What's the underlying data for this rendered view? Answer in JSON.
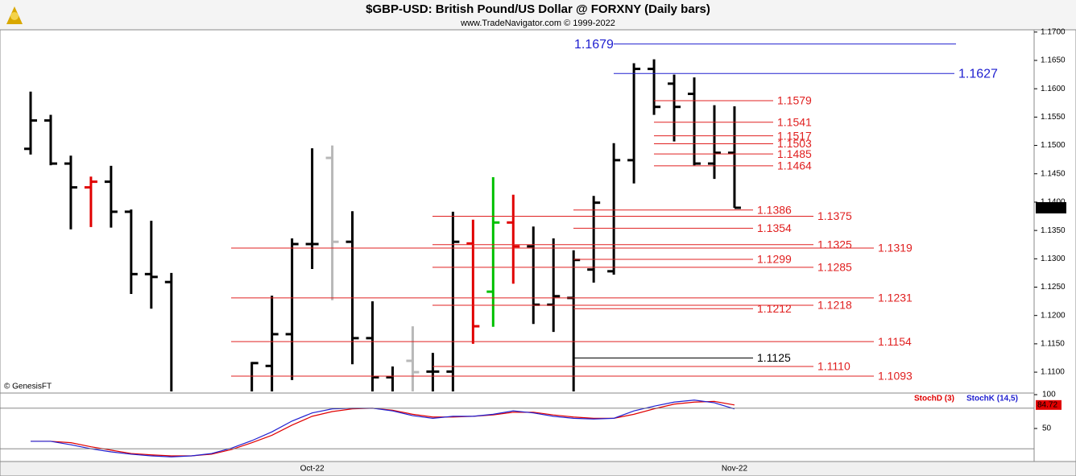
{
  "chart_data": {
    "type": "ohlc",
    "title": "$GBP-USD:  British Pound/US Dollar @ FORXNY  (Daily bars)",
    "subtitle": "www.TradeNavigator.com © 1999-2022",
    "watermark": "© GenesisFT",
    "categories": [
      null,
      null,
      null,
      null,
      null,
      null,
      null,
      null,
      null,
      null,
      null,
      null,
      null,
      null,
      "Oct-22",
      null,
      null,
      null,
      null,
      null,
      null,
      null,
      null,
      null,
      null,
      null,
      null,
      null,
      null,
      null,
      null,
      null,
      null,
      null,
      null,
      "Nov-22"
    ],
    "open": [
      1.1494,
      1.1544,
      1.1468,
      1.1426,
      1.1436,
      1.1383,
      1.1273,
      1.1259,
      null,
      null,
      null,
      1.105,
      1.1111,
      1.1167,
      1.1326,
      1.1478,
      1.133,
      1.116,
      1.1091,
      1.112,
      1.1101,
      1.1101,
      1.1327,
      1.1242,
      1.1364,
      1.1322,
      1.1219,
      1.1231,
      1.1281,
      1.1278,
      1.1474,
      1.1635,
      1.1609,
      1.1591,
      1.1468,
      1.1487
    ],
    "high": [
      1.1595,
      1.1554,
      1.1482,
      1.1445,
      1.1464,
      1.1387,
      1.1367,
      1.1275,
      null,
      null,
      null,
      1.1118,
      1.1235,
      1.1336,
      1.1495,
      1.15,
      1.1384,
      1.1225,
      1.111,
      1.1181,
      1.1134,
      1.1383,
      1.1369,
      1.1444,
      1.1413,
      1.1357,
      1.1336,
      1.1315,
      1.1411,
      1.1504,
      1.1645,
      1.1652,
      1.1625,
      1.162,
      1.1571,
      1.1569
    ],
    "low": [
      1.1484,
      1.1465,
      1.1352,
      1.1356,
      1.1355,
      1.1238,
      1.1212,
      1.104,
      null,
      null,
      null,
      1.103,
      1.106,
      1.1086,
      1.1282,
      1.1227,
      1.1114,
      1.106,
      1.106,
      1.106,
      1.106,
      1.106,
      1.115,
      1.118,
      1.1256,
      1.1185,
      1.1171,
      1.106,
      1.1258,
      1.1272,
      1.1433,
      1.1554,
      1.1507,
      1.1465,
      1.1441,
      1.139
    ],
    "close": [
      1.1544,
      1.1468,
      1.1426,
      1.1436,
      1.1383,
      1.1273,
      1.1268,
      1.105,
      null,
      null,
      null,
      1.1116,
      1.1167,
      1.1326,
      1.1326,
      1.133,
      1.116,
      1.1091,
      1.106,
      1.11,
      1.1101,
      1.133,
      1.1181,
      1.1364,
      1.1322,
      1.1219,
      1.1234,
      1.1298,
      1.1399,
      1.1474,
      1.1635,
      1.1568,
      1.1568,
      1.1468,
      1.1487,
      1.139
    ],
    "bar_colors": [
      "#000",
      "#000",
      "#000",
      "#e00000",
      "#000",
      "#000",
      "#000",
      "#000",
      null,
      null,
      null,
      "#000",
      "#000",
      "#000",
      "#000",
      "#b8b8b8",
      "#000",
      "#000",
      "#000",
      "#b8b8b8",
      "#000",
      "#000",
      "#e00000",
      "#00c000",
      "#e00000",
      "#000",
      "#000",
      "#000",
      "#000",
      "#000",
      "#000",
      "#000",
      "#000",
      "#000",
      "#000",
      "#000"
    ],
    "ylim": [
      1.1066,
      1.1704
    ],
    "yticks": [
      {
        "value": 1.17,
        "label": "1.1700"
      },
      {
        "value": 1.165,
        "label": "1.1650"
      },
      {
        "value": 1.16,
        "label": "1.1600"
      },
      {
        "value": 1.155,
        "label": "1.1550"
      },
      {
        "value": 1.15,
        "label": "1.1500"
      },
      {
        "value": 1.145,
        "label": "1.1450"
      },
      {
        "value": 1.14,
        "label": "1.1400"
      },
      {
        "value": 1.135,
        "label": "1.1350"
      },
      {
        "value": 1.13,
        "label": "1.1300"
      },
      {
        "value": 1.125,
        "label": "1.1250"
      },
      {
        "value": 1.12,
        "label": "1.1200"
      },
      {
        "value": 1.115,
        "label": "1.1150"
      },
      {
        "value": 1.11,
        "label": "1.1100"
      }
    ],
    "last_price": {
      "value": 1.139,
      "label": "1.1390"
    },
    "levels": [
      {
        "value": 1.1679,
        "label": "1.1679",
        "color": "#2020d0"
      },
      {
        "value": 1.1627,
        "label": "1.1627",
        "color": "#2020d0"
      },
      {
        "value": 1.1579,
        "label": "1.1579",
        "color": "#e02020"
      },
      {
        "value": 1.1541,
        "label": "1.1541",
        "color": "#e02020"
      },
      {
        "value": 1.1517,
        "label": "1.1517",
        "color": "#e02020"
      },
      {
        "value": 1.1503,
        "label": "1.1503",
        "color": "#e02020"
      },
      {
        "value": 1.1485,
        "label": "1.1485",
        "color": "#e02020"
      },
      {
        "value": 1.1464,
        "label": "1.1464",
        "color": "#e02020"
      },
      {
        "value": 1.1386,
        "label": "1.1386",
        "color": "#e02020"
      },
      {
        "value": 1.1375,
        "label": "1.1375",
        "color": "#e02020"
      },
      {
        "value": 1.1354,
        "label": "1.1354",
        "color": "#e02020"
      },
      {
        "value": 1.1325,
        "label": "1.1325",
        "color": "#e02020"
      },
      {
        "value": 1.1319,
        "label": "1.1319",
        "color": "#e02020"
      },
      {
        "value": 1.1299,
        "label": "1.1299",
        "color": "#e02020"
      },
      {
        "value": 1.1285,
        "label": "1.1285",
        "color": "#e02020"
      },
      {
        "value": 1.1231,
        "label": "1.1231",
        "color": "#e02020"
      },
      {
        "value": 1.1218,
        "label": "1.1218",
        "color": "#e02020"
      },
      {
        "value": 1.1212,
        "label": "1.1212",
        "color": "#e02020"
      },
      {
        "value": 1.1154,
        "label": "1.1154",
        "color": "#e02020"
      },
      {
        "value": 1.1125,
        "label": "1.1125",
        "color": "#000000"
      },
      {
        "value": 1.111,
        "label": "1.1110",
        "color": "#e02020"
      },
      {
        "value": 1.1093,
        "label": "1.1093",
        "color": "#e02020"
      }
    ],
    "stoch_ylim": [
      0,
      100
    ],
    "stoch_yticks": [
      100,
      50
    ],
    "stoch_levels": [
      80,
      20
    ],
    "stoch_series": [
      {
        "name": "StochD (3)",
        "color": "#e00000",
        "values": [
          31,
          31,
          29,
          23,
          18,
          13,
          11,
          9.5,
          9.5,
          12,
          19,
          29,
          40,
          55,
          68,
          75,
          79,
          80,
          77,
          71,
          67,
          67,
          68,
          70,
          74,
          74,
          70,
          67,
          65,
          65,
          71,
          79,
          86,
          89,
          90,
          84.72
        ],
        "value_labels": [
          null,
          null,
          null,
          null,
          null,
          null,
          null,
          null,
          null,
          null,
          null,
          null,
          null,
          null,
          null,
          null,
          null,
          null,
          null,
          null,
          null,
          null,
          null,
          null,
          null,
          null,
          null,
          null,
          null,
          null,
          null,
          null,
          null,
          null,
          null,
          "84.72"
        ]
      },
      {
        "name": "StochK (14,5)",
        "color": "#2020d0",
        "values": [
          31,
          31,
          26,
          20,
          15.5,
          12,
          9.5,
          8,
          9.5,
          13,
          21,
          32,
          45,
          61,
          73,
          79,
          80,
          80,
          76,
          69,
          65,
          68,
          68,
          71,
          76,
          73,
          68,
          65,
          64,
          65,
          76,
          83,
          89,
          92,
          88,
          79
        ]
      }
    ]
  }
}
